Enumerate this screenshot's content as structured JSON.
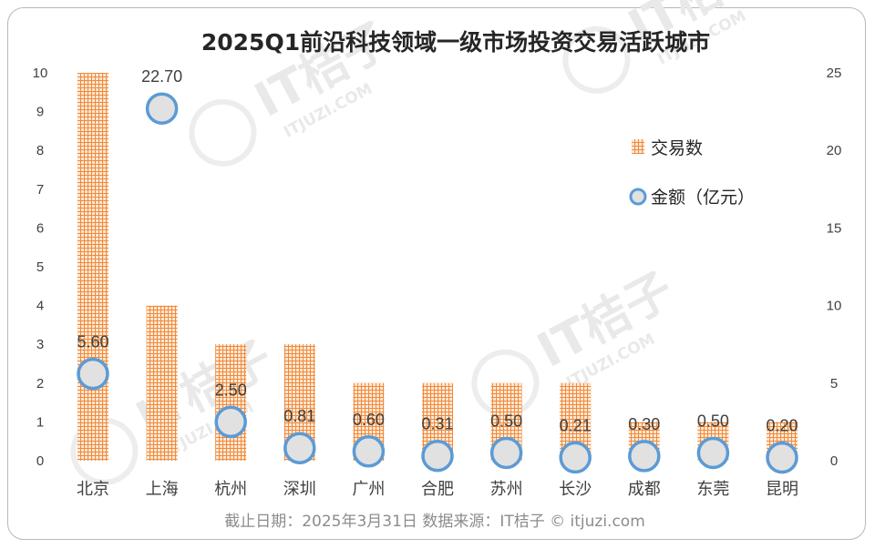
{
  "chart_data": {
    "type": "bar",
    "title": "2025Q1前沿科技领域一级市场投资交易活跃城市",
    "categories": [
      "北京",
      "上海",
      "杭州",
      "深圳",
      "广州",
      "合肥",
      "苏州",
      "长沙",
      "成都",
      "东莞",
      "昆明"
    ],
    "series": [
      {
        "name": "交易数",
        "type": "bar",
        "axis": "left",
        "values": [
          10,
          4,
          3,
          3,
          2,
          2,
          2,
          2,
          1,
          1,
          1
        ]
      },
      {
        "name": "金额（亿元）",
        "type": "scatter",
        "axis": "right",
        "values": [
          5.6,
          22.7,
          2.5,
          0.81,
          0.6,
          0.31,
          0.5,
          0.21,
          0.3,
          0.5,
          0.2
        ],
        "labels": [
          "5.60",
          "22.70",
          "2.50",
          "0.81",
          "0.60",
          "0.31",
          "0.50",
          "0.21",
          "0.30",
          "0.50",
          "0.20"
        ]
      }
    ],
    "y_left": {
      "ylim": [
        0,
        10
      ],
      "ticks": [
        "0",
        "1",
        "2",
        "3",
        "4",
        "5",
        "6",
        "7",
        "8",
        "9",
        "10"
      ]
    },
    "y_right": {
      "ylim": [
        0,
        25
      ],
      "ticks": [
        "0",
        "5",
        "10",
        "15",
        "20",
        "25"
      ]
    },
    "legend_position": "right",
    "grid": false
  },
  "footer": "截止日期：2025年3月31日     数据来源：IT桔子 © itjuzi.com",
  "watermark": {
    "text": "IT桔子",
    "subtext": "ITJUZI.COM"
  },
  "colors": {
    "bar": "#f4a261",
    "bar_pattern": "#f08a3c",
    "marker_fill": "#e1e1e1",
    "marker_edge": "#5b9bd5"
  }
}
